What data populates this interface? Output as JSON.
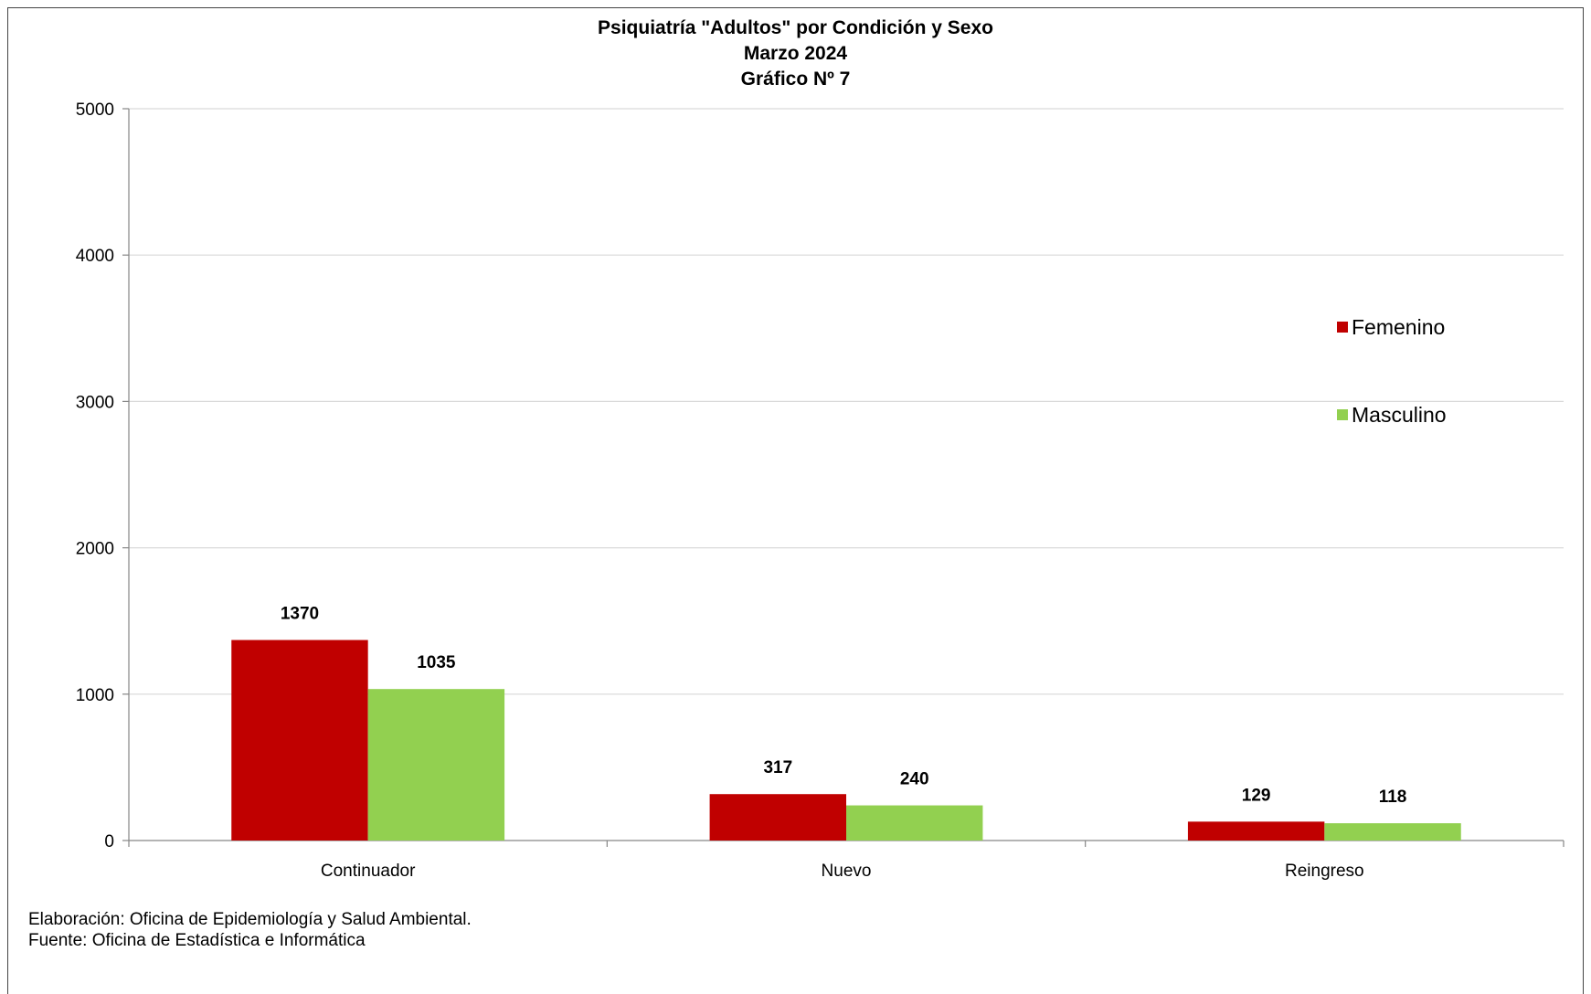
{
  "chart_data": {
    "type": "bar",
    "title": "Psiquiatría \"Adultos\" por Condición y Sexo",
    "subtitle": "Marzo 2024",
    "figure_label": "Gráfico Nº 7",
    "categories": [
      "Continuador",
      "Nuevo",
      "Reingreso"
    ],
    "series": [
      {
        "name": "Femenino",
        "values": [
          1370,
          317,
          129
        ],
        "color": "#c00000"
      },
      {
        "name": "Masculino",
        "values": [
          1035,
          240,
          118
        ],
        "color": "#92d050"
      }
    ],
    "ylim": [
      0,
      5000
    ],
    "yticks": [
      0,
      1000,
      2000,
      3000,
      4000,
      5000
    ],
    "grid": true,
    "legend_position": "right",
    "data_labels": true
  },
  "footer": {
    "line1": "Elaboración: Oficina de Epidemiología y Salud Ambiental.",
    "line2": "Fuente:  Oficina de Estadística e Informática"
  }
}
